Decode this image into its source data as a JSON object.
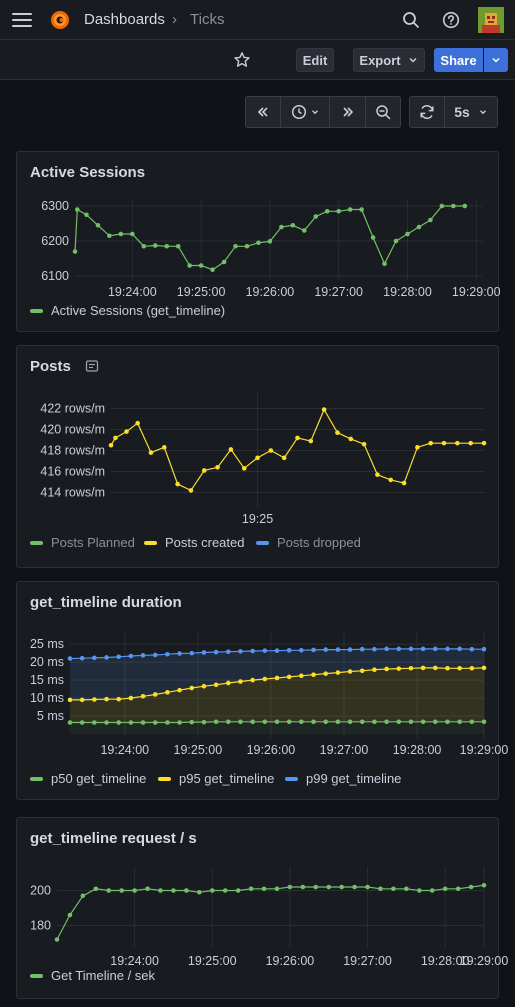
{
  "header": {
    "breadcrumb_parent": "Dashboards",
    "breadcrumb_sep": "›",
    "breadcrumb_current": "Ticks"
  },
  "toolbar": {
    "edit_label": "Edit",
    "export_label": "Export",
    "share_label": "Share",
    "refresh_interval": "5s"
  },
  "colors": {
    "green": "#73bf69",
    "yellow": "#fade2a",
    "blue": "#5794f2",
    "accent": "#3d71d9"
  },
  "panels": [
    {
      "title": "Active Sessions",
      "legend": [
        {
          "label": "Active Sessions (get_timeline)",
          "color": "#73bf69"
        }
      ],
      "chart_data": {
        "type": "line",
        "yticks": [
          "6300",
          "6200",
          "6100"
        ],
        "xticks": [
          "19:24:00",
          "19:25:00",
          "19:26:00",
          "19:27:00",
          "19:28:00",
          "19:29:00"
        ],
        "ylim": [
          6100,
          6300
        ],
        "series": [
          {
            "name": "Active Sessions (get_timeline)",
            "color": "#73bf69",
            "x": [
              "19:23:10",
              "19:23:12",
              "19:23:20",
              "19:23:30",
              "19:23:40",
              "19:23:50",
              "19:24:00",
              "19:24:10",
              "19:24:20",
              "19:24:30",
              "19:24:40",
              "19:24:50",
              "19:25:00",
              "19:25:10",
              "19:25:20",
              "19:25:30",
              "19:25:40",
              "19:25:50",
              "19:26:00",
              "19:26:10",
              "19:26:20",
              "19:26:30",
              "19:26:40",
              "19:26:50",
              "19:27:00",
              "19:27:10",
              "19:27:20",
              "19:27:30",
              "19:27:40",
              "19:27:50",
              "19:28:00",
              "19:28:10",
              "19:28:20",
              "19:28:30",
              "19:28:40",
              "19:28:50"
            ],
            "values": [
              6170,
              6290,
              6275,
              6245,
              6215,
              6220,
              6220,
              6185,
              6187,
              6185,
              6185,
              6130,
              6130,
              6118,
              6140,
              6185,
              6185,
              6195,
              6199,
              6240,
              6245,
              6230,
              6270,
              6285,
              6285,
              6290,
              6290,
              6210,
              6135,
              6200,
              6220,
              6240,
              6260,
              6300,
              6300,
              6300
            ]
          }
        ]
      }
    },
    {
      "title": "Posts",
      "legend": [
        {
          "label": "Posts Planned",
          "color": "#73bf69"
        },
        {
          "label": "Posts created",
          "color": "#fade2a"
        },
        {
          "label": "Posts dropped",
          "color": "#5794f2"
        }
      ],
      "chart_data": {
        "type": "line",
        "yticks": [
          "422 rows/m",
          "420 rows/m",
          "418 rows/m",
          "416 rows/m",
          "414 rows/m"
        ],
        "xticks": [
          "19:25"
        ],
        "ylim": [
          413,
          423
        ],
        "series": [
          {
            "name": "Posts created",
            "color": "#fade2a",
            "x": [
              "19:23:54",
              "19:23:56",
              "19:24:01",
              "19:24:06",
              "19:24:12",
              "19:24:18",
              "19:24:24",
              "19:24:30",
              "19:24:36",
              "19:24:42",
              "19:24:48",
              "19:24:54",
              "19:25:00",
              "19:25:06",
              "19:25:12",
              "19:25:18",
              "19:25:24",
              "19:25:30",
              "19:25:36",
              "19:25:42",
              "19:25:48",
              "19:25:54",
              "19:26:00",
              "19:26:06",
              "19:26:12",
              "19:26:18",
              "19:26:24",
              "19:26:30",
              "19:26:36",
              "19:26:42"
            ],
            "values": [
              418.5,
              419.2,
              419.8,
              420.6,
              417.8,
              418.3,
              414.8,
              414.2,
              416.1,
              416.4,
              418.1,
              416.3,
              417.3,
              418.0,
              417.3,
              419.2,
              418.9,
              421.9,
              419.7,
              419.1,
              418.6,
              415.7,
              415.2,
              414.9,
              418.3,
              418.7,
              418.7,
              418.7,
              418.7,
              418.7
            ]
          }
        ]
      }
    },
    {
      "title": "get_timeline duration",
      "legend": [
        {
          "label": "p50 get_timeline",
          "color": "#73bf69"
        },
        {
          "label": "p95 get_timeline",
          "color": "#fade2a"
        },
        {
          "label": "p99 get_timeline",
          "color": "#5794f2"
        }
      ],
      "chart_data": {
        "type": "area",
        "yticks": [
          "25 ms",
          "20 ms",
          "15 ms",
          "10 ms",
          "5 ms"
        ],
        "xticks": [
          "19:24:00",
          "19:25:00",
          "19:26:00",
          "19:27:00",
          "19:28:00",
          "19:29:00"
        ],
        "ylim": [
          0,
          27
        ],
        "x": [
          "19:23:15",
          "19:23:25",
          "19:23:35",
          "19:23:45",
          "19:23:55",
          "19:24:05",
          "19:24:15",
          "19:24:25",
          "19:24:35",
          "19:24:45",
          "19:24:55",
          "19:25:05",
          "19:25:15",
          "19:25:25",
          "19:25:35",
          "19:25:45",
          "19:25:55",
          "19:26:05",
          "19:26:15",
          "19:26:25",
          "19:26:35",
          "19:26:45",
          "19:26:55",
          "19:27:05",
          "19:27:15",
          "19:27:25",
          "19:27:35",
          "19:27:45",
          "19:27:55",
          "19:28:05",
          "19:28:15",
          "19:28:25",
          "19:28:35",
          "19:28:45",
          "19:28:55"
        ],
        "series": [
          {
            "name": "p50 get_timeline",
            "color": "#73bf69",
            "values": [
              3.2,
              3.2,
              3.2,
              3.2,
              3.2,
              3.2,
              3.2,
              3.2,
              3.2,
              3.2,
              3.3,
              3.3,
              3.4,
              3.4,
              3.4,
              3.4,
              3.4,
              3.4,
              3.4,
              3.4,
              3.4,
              3.4,
              3.4,
              3.4,
              3.4,
              3.4,
              3.4,
              3.4,
              3.4,
              3.4,
              3.4,
              3.4,
              3.4,
              3.4,
              3.4
            ]
          },
          {
            "name": "p95 get_timeline",
            "color": "#fade2a",
            "values": [
              9.5,
              9.5,
              9.6,
              9.7,
              9.7,
              10.0,
              10.5,
              11.0,
              11.6,
              12.2,
              12.8,
              13.3,
              13.7,
              14.2,
              14.6,
              15.0,
              15.3,
              15.6,
              15.9,
              16.2,
              16.5,
              16.8,
              17.1,
              17.4,
              17.6,
              17.9,
              18.1,
              18.2,
              18.3,
              18.4,
              18.4,
              18.3,
              18.3,
              18.3,
              18.4
            ]
          },
          {
            "name": "p99 get_timeline",
            "color": "#5794f2",
            "values": [
              21.0,
              21.1,
              21.2,
              21.3,
              21.5,
              21.7,
              21.9,
              22.0,
              22.2,
              22.4,
              22.5,
              22.7,
              22.8,
              22.9,
              23.0,
              23.1,
              23.2,
              23.2,
              23.3,
              23.3,
              23.4,
              23.5,
              23.5,
              23.5,
              23.6,
              23.6,
              23.7,
              23.7,
              23.7,
              23.7,
              23.7,
              23.7,
              23.7,
              23.6,
              23.6
            ]
          }
        ]
      }
    },
    {
      "title": "get_timeline request / s",
      "legend": [
        {
          "label": "Get Timeline / sek",
          "color": "#73bf69"
        }
      ],
      "chart_data": {
        "type": "line",
        "yticks": [
          "200",
          "180"
        ],
        "xticks": [
          "19:24:00",
          "19:25:00",
          "19:26:00",
          "19:27:00",
          "19:28:00",
          "19:29:00"
        ],
        "ylim": [
          170,
          210
        ],
        "series": [
          {
            "name": "Get Timeline / sek",
            "color": "#73bf69",
            "x": [
              "19:23:00",
              "19:23:10",
              "19:23:20",
              "19:23:30",
              "19:23:40",
              "19:23:50",
              "19:24:00",
              "19:24:10",
              "19:24:20",
              "19:24:30",
              "19:24:40",
              "19:24:50",
              "19:25:00",
              "19:25:10",
              "19:25:20",
              "19:25:30",
              "19:25:40",
              "19:25:50",
              "19:26:00",
              "19:26:10",
              "19:26:20",
              "19:26:30",
              "19:26:40",
              "19:26:50",
              "19:27:00",
              "19:27:10",
              "19:27:20",
              "19:27:30",
              "19:27:40",
              "19:27:50",
              "19:28:00",
              "19:28:10",
              "19:28:20",
              "19:28:30"
            ],
            "values": [
              172,
              186,
              197,
              201,
              200,
              200,
              200,
              201,
              200,
              200,
              200,
              199,
              200,
              200,
              200,
              201,
              201,
              201,
              202,
              202,
              202,
              202,
              202,
              202,
              202,
              201,
              201,
              201,
              200,
              200,
              201,
              201,
              202,
              203
            ]
          }
        ]
      }
    }
  ]
}
